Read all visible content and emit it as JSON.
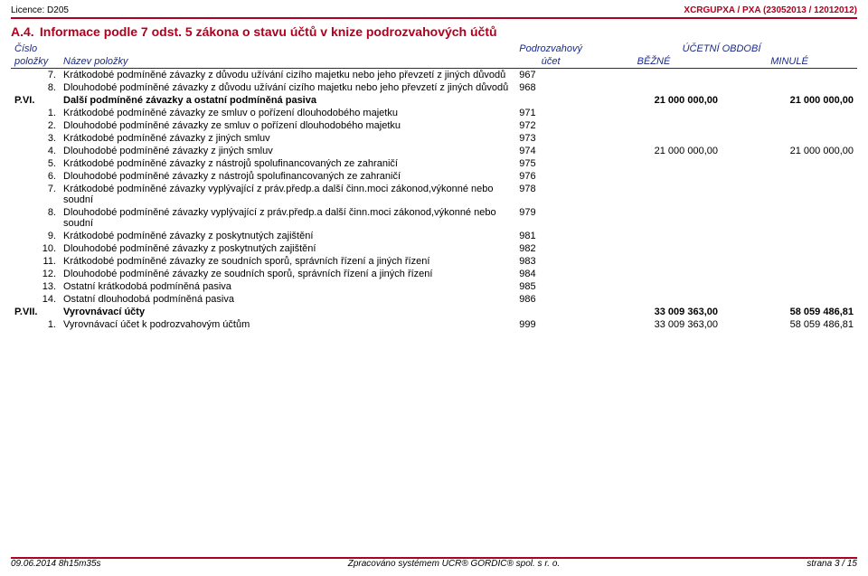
{
  "header": {
    "licence_label": "Licence:",
    "licence_code": "D205",
    "source": "XCRGUPXA / PXA (23052013 / 12012012)"
  },
  "section": {
    "code": "A.4.",
    "title": "Informace podle 7 odst. 5 zákona o stavu účtů v knize podrozvahových účtů"
  },
  "thead": {
    "r1": {
      "cislo": "Číslo",
      "sub": "Podrozvahový",
      "period": "ÚČETNÍ OBDOBÍ"
    },
    "r2": {
      "polozky": "položky",
      "nazev": "Název položky",
      "ucet": "účet",
      "bezne": "BĚŽNÉ",
      "minule": "MINULÉ"
    }
  },
  "rows": [
    {
      "num": "7.",
      "name": "Krátkodobé podmíněné závazky z důvodu užívání cizího majetku nebo jeho převzetí z jiných důvodů",
      "acct": "967",
      "curr": "",
      "prev": ""
    },
    {
      "num": "8.",
      "name": "Dlouhodobé podmíněné závazky z důvodu užívání cizího majetku nebo jeho převzetí z jiných důvodů",
      "acct": "968",
      "curr": "",
      "prev": ""
    },
    {
      "group": true,
      "num": "P.VI.",
      "name": "Další podmíněné závazky a ostatní podmíněná pasiva",
      "acct": "",
      "curr": "21 000 000,00",
      "prev": "21 000 000,00"
    },
    {
      "num": "1.",
      "name": "Krátkodobé podmíněné závazky ze smluv o pořízení dlouhodobého majetku",
      "acct": "971",
      "curr": "",
      "prev": ""
    },
    {
      "num": "2.",
      "name": "Dlouhodobé podmíněné závazky ze smluv o pořízení dlouhodobého majetku",
      "acct": "972",
      "curr": "",
      "prev": ""
    },
    {
      "num": "3.",
      "name": "Krátkodobé podmíněné závazky z jiných smluv",
      "acct": "973",
      "curr": "",
      "prev": ""
    },
    {
      "num": "4.",
      "name": "Dlouhodobé podmíněné závazky z jiných smluv",
      "acct": "974",
      "curr": "21 000 000,00",
      "prev": "21 000 000,00"
    },
    {
      "num": "5.",
      "name": "Krátkodobé podmíněné závazky z nástrojů spolufinancovaných ze zahraničí",
      "acct": "975",
      "curr": "",
      "prev": ""
    },
    {
      "num": "6.",
      "name": "Dlouhodobé podmíněné závazky z nástrojů spolufinancovaných ze zahraničí",
      "acct": "976",
      "curr": "",
      "prev": ""
    },
    {
      "num": "7.",
      "name": "Krátkodobé podmíněné závazky vyplývající z práv.předp.a další činn.moci zákonod,výkonné nebo soudní",
      "acct": "978",
      "curr": "",
      "prev": ""
    },
    {
      "num": "8.",
      "name": "Dlouhodobé podmíněné závazky vyplývající z práv.předp.a další činn.moci zákonod,výkonné nebo soudní",
      "acct": "979",
      "curr": "",
      "prev": ""
    },
    {
      "num": "9.",
      "name": "Krátkodobé podmíněné závazky z poskytnutých zajištění",
      "acct": "981",
      "curr": "",
      "prev": ""
    },
    {
      "num": "10.",
      "name": "Dlouhodobé podmíněné závazky z poskytnutých zajištění",
      "acct": "982",
      "curr": "",
      "prev": ""
    },
    {
      "num": "11.",
      "name": "Krátkodobé podmíněné závazky ze soudních sporů, správních řízení a jiných řízení",
      "acct": "983",
      "curr": "",
      "prev": ""
    },
    {
      "num": "12.",
      "name": "Dlouhodobé podmíněné závazky ze soudních sporů, správních řízení a jiných řízení",
      "acct": "984",
      "curr": "",
      "prev": ""
    },
    {
      "num": "13.",
      "name": "Ostatní krátkodobá podmíněná pasiva",
      "acct": "985",
      "curr": "",
      "prev": ""
    },
    {
      "num": "14.",
      "name": "Ostatní dlouhodobá podmíněná pasiva",
      "acct": "986",
      "curr": "",
      "prev": ""
    },
    {
      "group": true,
      "num": "P.VII.",
      "name": "Vyrovnávací účty",
      "acct": "",
      "curr": "33 009 363,00",
      "prev": "58 059 486,81"
    },
    {
      "num": "1.",
      "name": "Vyrovnávací účet k podrozvahovým účtům",
      "acct": "999",
      "curr": "33 009 363,00",
      "prev": "58 059 486,81"
    }
  ],
  "footer": {
    "left": "09.06.2014 8h15m35s",
    "center": "Zpracováno systémem UCR® GORDIC® spol. s r. o.",
    "right": "strana 3 / 15"
  }
}
